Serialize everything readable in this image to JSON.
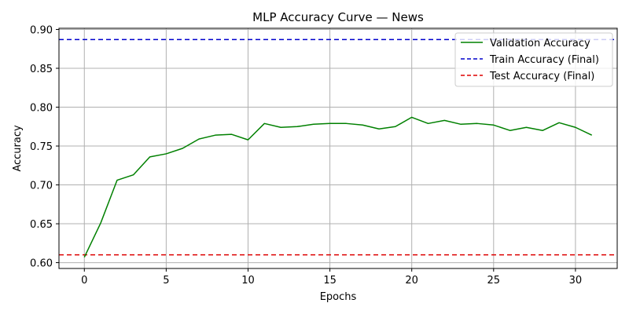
{
  "chart_data": {
    "type": "line",
    "title": "MLP Accuracy Curve — News",
    "xlabel": "Epochs",
    "ylabel": "Accuracy",
    "xlim": [
      -1.55,
      32.55
    ],
    "ylim": [
      0.5925,
      0.9015
    ],
    "xticks": [
      0,
      5,
      10,
      15,
      20,
      25,
      30
    ],
    "yticks": [
      0.6,
      0.65,
      0.7,
      0.75,
      0.8,
      0.85,
      0.9
    ],
    "grid": true,
    "legend_position": "top-right",
    "series": [
      {
        "name": "Validation Accuracy",
        "style": "solid",
        "color": "#008000",
        "x": [
          0,
          1,
          2,
          3,
          4,
          5,
          6,
          7,
          8,
          9,
          10,
          11,
          12,
          13,
          14,
          15,
          16,
          17,
          18,
          19,
          20,
          21,
          22,
          23,
          24,
          25,
          26,
          27,
          28,
          29,
          30,
          31
        ],
        "y": [
          0.607,
          0.651,
          0.706,
          0.713,
          0.736,
          0.74,
          0.747,
          0.759,
          0.764,
          0.765,
          0.758,
          0.779,
          0.774,
          0.775,
          0.778,
          0.779,
          0.779,
          0.777,
          0.772,
          0.775,
          0.787,
          0.779,
          0.783,
          0.778,
          0.779,
          0.777,
          0.77,
          0.774,
          0.77,
          0.78,
          0.774,
          0.764
        ]
      },
      {
        "name": "Train Accuracy (Final)",
        "style": "dashed",
        "color": "#0000cc",
        "hline": 0.887
      },
      {
        "name": "Test Accuracy (Final)",
        "style": "dashed",
        "color": "#dd0000",
        "hline": 0.61
      }
    ]
  }
}
